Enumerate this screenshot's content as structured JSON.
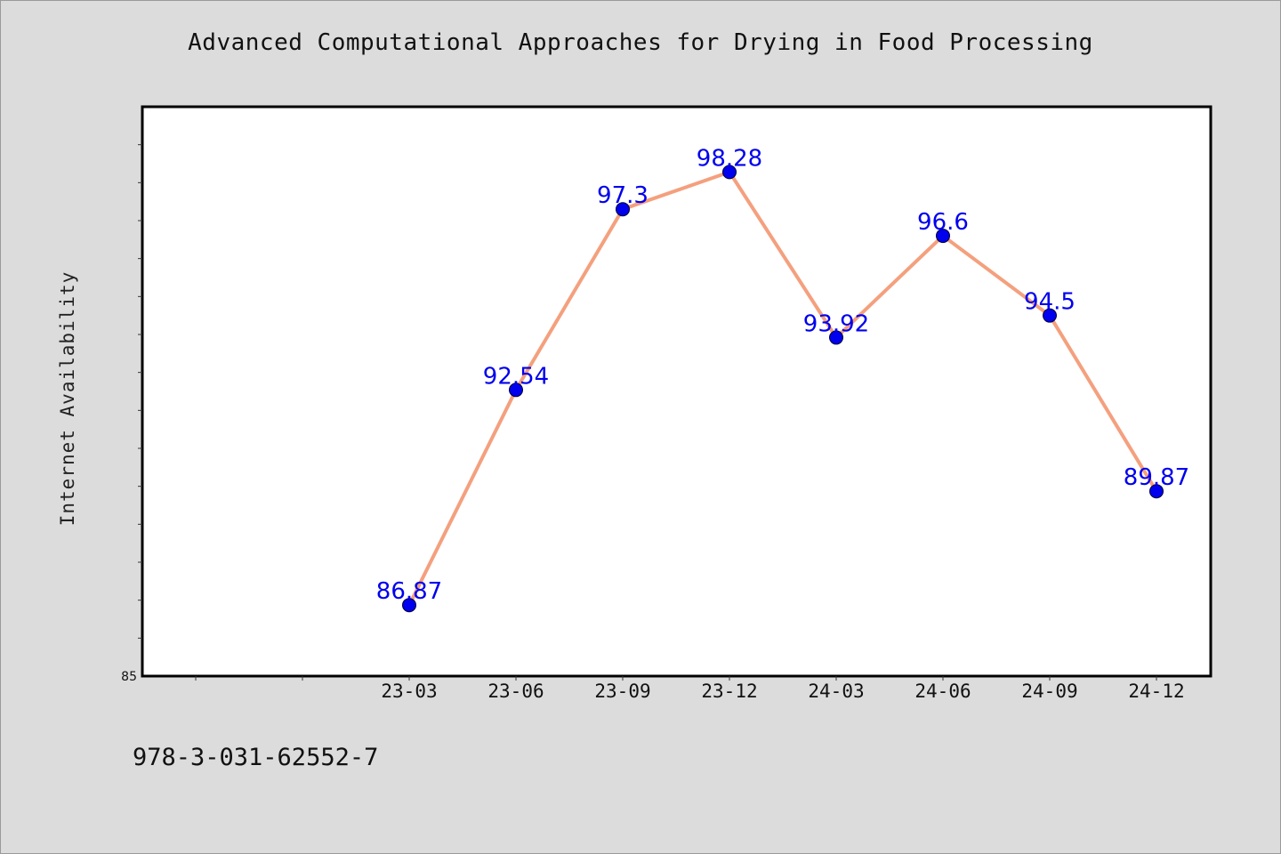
{
  "chart_data": {
    "type": "line",
    "title": "Advanced Computational Approaches for Drying in Food Processing",
    "xlabel": "",
    "ylabel": "Internet Availability",
    "categories": [
      "23-03",
      "23-06",
      "23-09",
      "23-12",
      "24-03",
      "24-06",
      "24-09",
      "24-12"
    ],
    "series": [
      {
        "values": [
          86.87,
          92.54,
          97.3,
          98.28,
          93.92,
          96.6,
          94.5,
          89.87
        ]
      }
    ],
    "ylim": [
      85,
      100
    ],
    "y_tick_labels": [
      "85"
    ],
    "y_minor_step": 1,
    "line_color": "#f4a07e",
    "marker_color": "#0000ee",
    "data_label_color": "#0000ee",
    "plot_background": "#ffffff",
    "page_background": "#dcdcdc",
    "grid": false,
    "legend": "none"
  },
  "footer": {
    "isbn": "978-3-031-62552-7"
  }
}
